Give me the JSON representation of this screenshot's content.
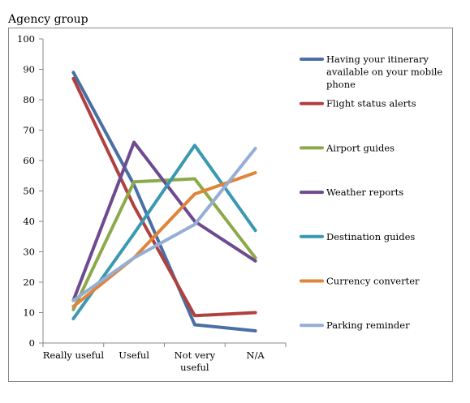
{
  "chart_data": {
    "type": "line",
    "title": "Agency group",
    "categories": [
      "Really useful",
      "Useful",
      "Not very useful",
      "N/A"
    ],
    "category_lines": [
      [
        "Really useful"
      ],
      [
        "Useful"
      ],
      [
        "Not very",
        "useful"
      ],
      [
        "N/A"
      ]
    ],
    "ylim": [
      0,
      100
    ],
    "yticks": [
      0,
      10,
      20,
      30,
      40,
      50,
      60,
      70,
      80,
      90,
      100
    ],
    "grid": false,
    "legend_position": "right",
    "series": [
      {
        "name": "Having your itinerary available on your mobile phone",
        "name_lines": [
          "Having your itinerary",
          "available on your mobile",
          "phone"
        ],
        "color": "#4a6fa5",
        "values": [
          89,
          52,
          6,
          4
        ]
      },
      {
        "name": "Flight status alerts",
        "name_lines": [
          "Flight status alerts"
        ],
        "color": "#b0413e",
        "values": [
          87,
          45,
          9,
          10
        ]
      },
      {
        "name": "Airport guides",
        "name_lines": [
          "Airport guides"
        ],
        "color": "#8caa4b",
        "values": [
          11,
          53,
          54,
          28
        ]
      },
      {
        "name": "Weather reports",
        "name_lines": [
          "Weather reports"
        ],
        "color": "#6e4a8e",
        "values": [
          14,
          66,
          40,
          27
        ]
      },
      {
        "name": "Destination guides",
        "name_lines": [
          "Destination guides"
        ],
        "color": "#3a99b0",
        "values": [
          8,
          36,
          65,
          37
        ]
      },
      {
        "name": "Currency converter",
        "name_lines": [
          "Currency converter"
        ],
        "color": "#e0843a",
        "values": [
          12,
          28,
          49,
          56
        ]
      },
      {
        "name": "Parking reminder",
        "name_lines": [
          "Parking reminder"
        ],
        "color": "#95aed6",
        "values": [
          14,
          28,
          39,
          64
        ]
      }
    ]
  }
}
